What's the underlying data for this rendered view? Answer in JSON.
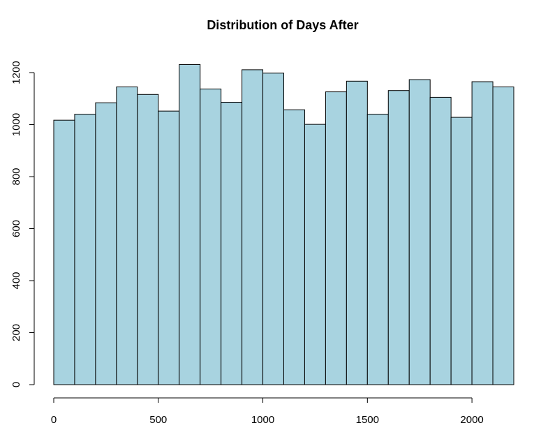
{
  "chart_data": {
    "type": "bar",
    "title": "Distribution of Days After",
    "xlabel": "",
    "ylabel": "",
    "bar_color": "#a8d3e0",
    "bin_width": 100,
    "bin_edges": [
      0,
      100,
      200,
      300,
      400,
      500,
      600,
      700,
      800,
      900,
      1000,
      1100,
      1200,
      1300,
      1400,
      1500,
      1600,
      1700,
      1800,
      1900,
      2000,
      2100,
      2200
    ],
    "values": [
      1017,
      1040,
      1084,
      1145,
      1116,
      1052,
      1231,
      1137,
      1086,
      1211,
      1198,
      1057,
      1001,
      1126,
      1167,
      1040,
      1131,
      1173,
      1105,
      1028,
      1165,
      1145
    ],
    "xlim": [
      0,
      2200
    ],
    "ylim": [
      0,
      1200
    ],
    "x_ticks": [
      0,
      500,
      1000,
      1500,
      2000
    ],
    "y_ticks": [
      0,
      200,
      400,
      600,
      800,
      1000,
      1200
    ],
    "x_tick_labels": [
      "0",
      "500",
      "1000",
      "1500",
      "2000"
    ],
    "y_tick_labels": [
      "0",
      "200",
      "400",
      "600",
      "800",
      "1000",
      "1200"
    ],
    "grid": false,
    "legend": "none"
  }
}
